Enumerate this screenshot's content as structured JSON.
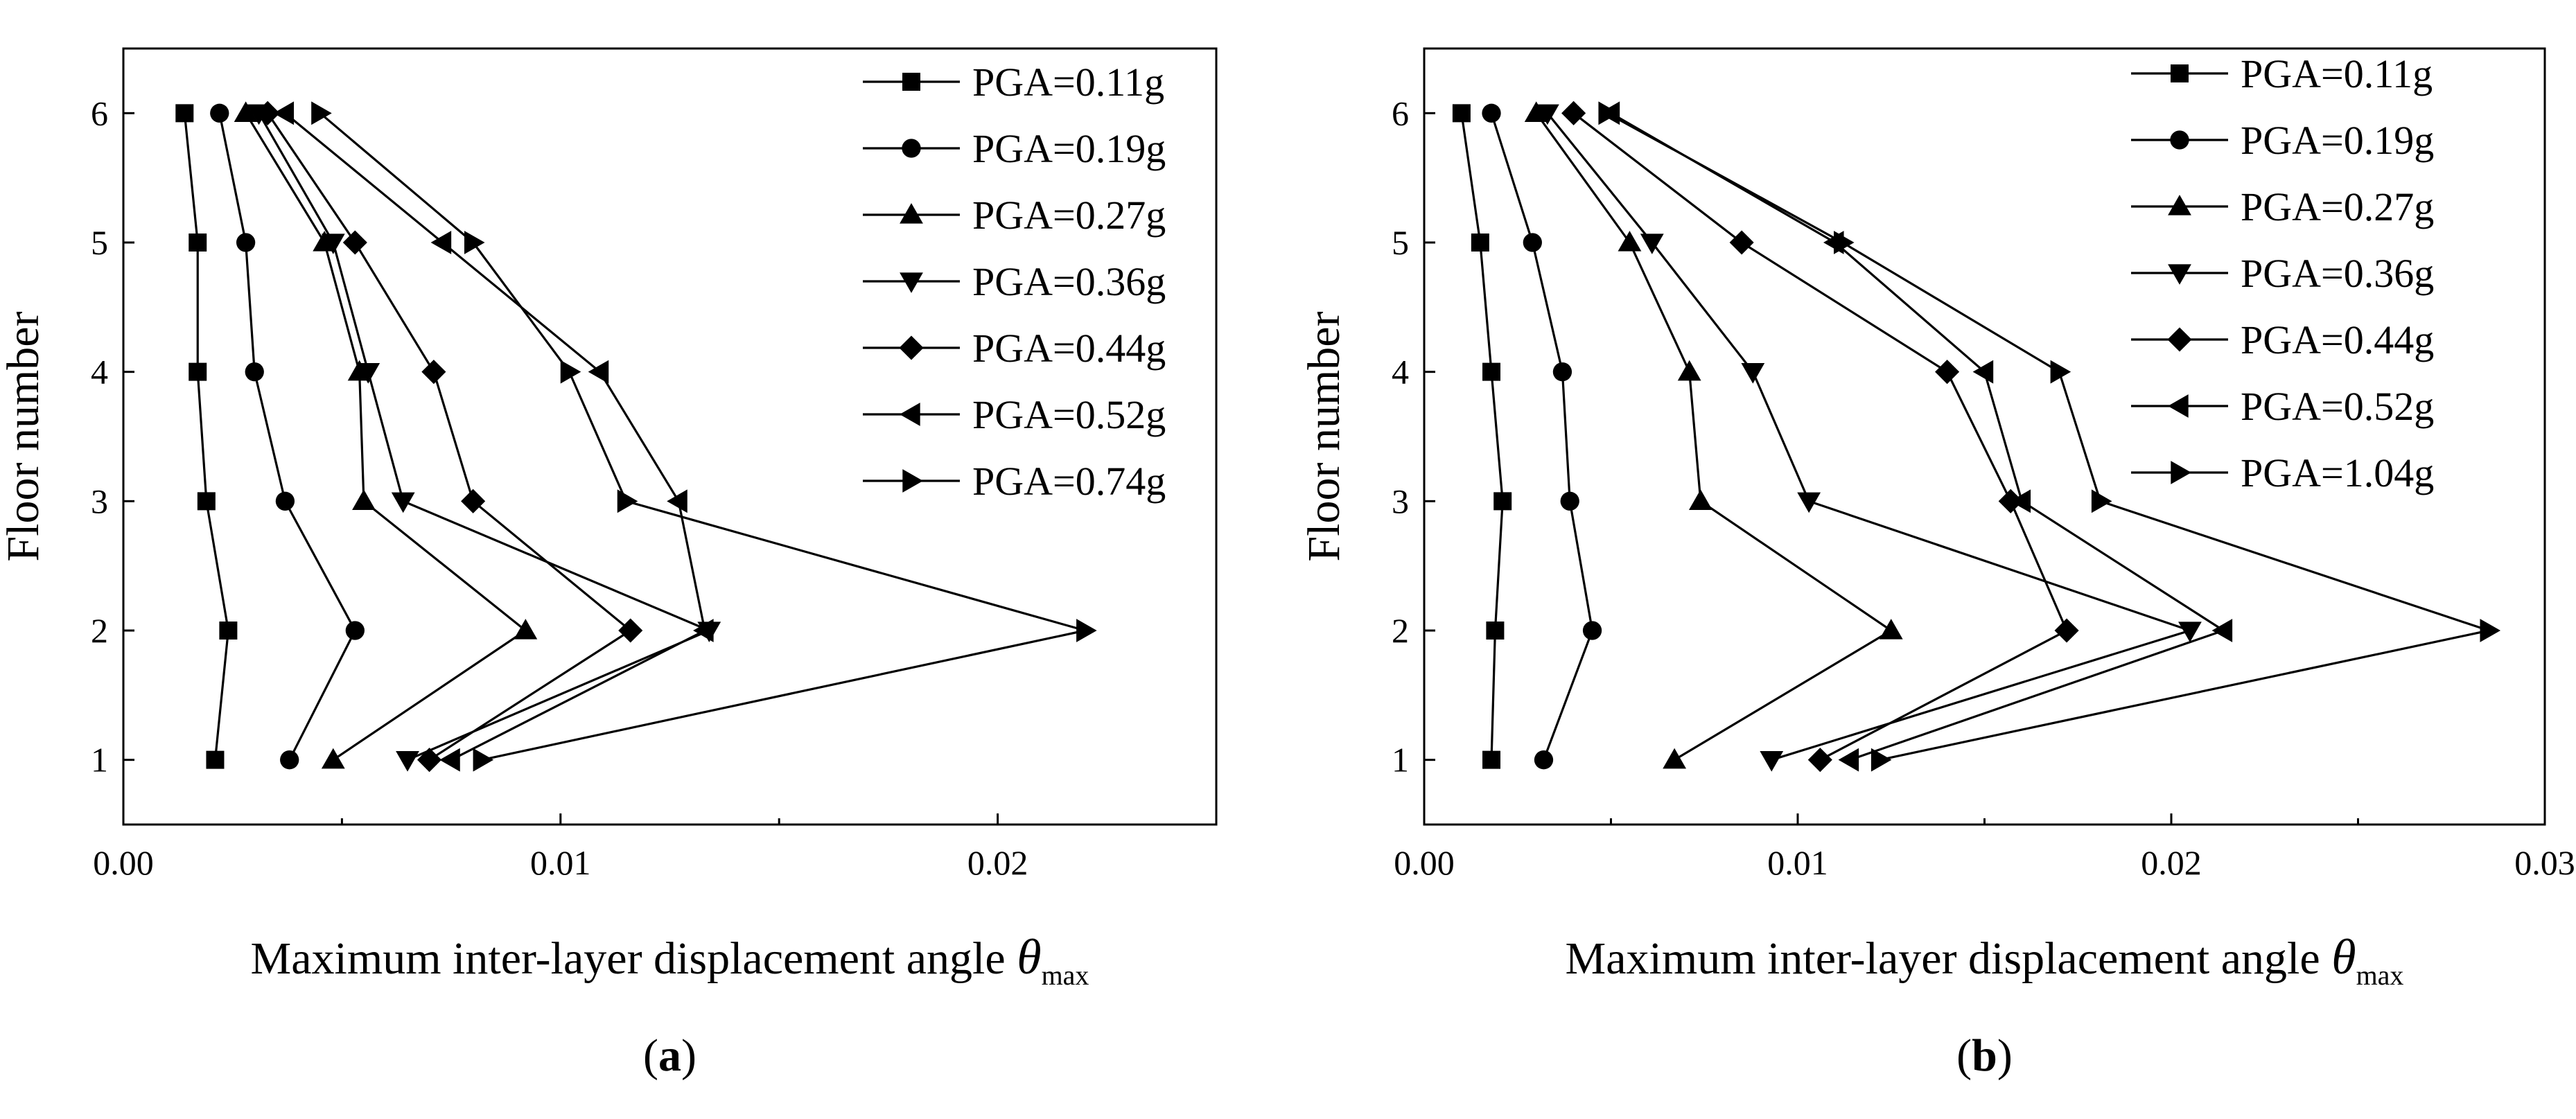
{
  "chart_data": [
    {
      "type": "line",
      "panel_label": "(a)",
      "xlabel": "Maximum inter-layer displacement angle θmax",
      "xlabel_main": "Maximum inter-layer displacement angle ",
      "xlabel_symbol": "θ",
      "xlabel_sub": "max",
      "ylabel": "Floor number",
      "xlim": [
        0,
        0.025
      ],
      "ylim": [
        0.5,
        6.5
      ],
      "xticks": [
        0.0,
        0.01,
        0.02
      ],
      "xtick_labels": [
        "0.00",
        "0.01",
        "0.02"
      ],
      "yticks": [
        1,
        2,
        3,
        4,
        5,
        6
      ],
      "ytick_labels": [
        "1",
        "2",
        "3",
        "4",
        "5",
        "6"
      ],
      "legend_position": "top-right",
      "grid": false,
      "y": [
        1,
        2,
        3,
        4,
        5,
        6
      ],
      "series": [
        {
          "name": "PGA=0.11g",
          "marker": "square",
          "x": [
            0.0021,
            0.0024,
            0.0019,
            0.0017,
            0.0017,
            0.0014
          ]
        },
        {
          "name": "PGA=0.19g",
          "marker": "circle",
          "x": [
            0.0038,
            0.0053,
            0.0037,
            0.003,
            0.0028,
            0.0022
          ]
        },
        {
          "name": "PGA=0.27g",
          "marker": "triangle-up",
          "x": [
            0.0048,
            0.0092,
            0.0055,
            0.0054,
            0.0046,
            0.0028
          ]
        },
        {
          "name": "PGA=0.36g",
          "marker": "triangle-down",
          "x": [
            0.0065,
            0.0134,
            0.0064,
            0.0056,
            0.0048,
            0.0031
          ]
        },
        {
          "name": "PGA=0.44g",
          "marker": "diamond",
          "x": [
            0.007,
            0.0116,
            0.008,
            0.0071,
            0.0053,
            0.0033
          ]
        },
        {
          "name": "PGA=0.52g",
          "marker": "triangle-left",
          "x": [
            0.0075,
            0.0133,
            0.0127,
            0.0109,
            0.0073,
            0.0037
          ]
        },
        {
          "name": "PGA=0.74g",
          "marker": "triangle-right",
          "x": [
            0.0082,
            0.022,
            0.0115,
            0.0102,
            0.008,
            0.0045
          ]
        }
      ]
    },
    {
      "type": "line",
      "panel_label": "(b)",
      "xlabel": "Maximum inter-layer displacement angle θmax",
      "xlabel_main": "Maximum inter-layer displacement angle ",
      "xlabel_symbol": "θ",
      "xlabel_sub": "max",
      "ylabel": "Floor number",
      "xlim": [
        0,
        0.03
      ],
      "ylim": [
        0.5,
        6.5
      ],
      "xticks": [
        0.0,
        0.01,
        0.02,
        0.03
      ],
      "xtick_labels": [
        "0.00",
        "0.01",
        "0.02",
        "0.03"
      ],
      "yticks": [
        1,
        2,
        3,
        4,
        5,
        6
      ],
      "ytick_labels": [
        "1",
        "2",
        "3",
        "4",
        "5",
        "6"
      ],
      "legend_position": "top-right",
      "grid": false,
      "y": [
        1,
        2,
        3,
        4,
        5,
        6
      ],
      "series": [
        {
          "name": "PGA=0.11g",
          "marker": "square",
          "x": [
            0.0018,
            0.0019,
            0.0021,
            0.0018,
            0.0015,
            0.001
          ]
        },
        {
          "name": "PGA=0.19g",
          "marker": "circle",
          "x": [
            0.0032,
            0.0045,
            0.0039,
            0.0037,
            0.0029,
            0.0018
          ]
        },
        {
          "name": "PGA=0.27g",
          "marker": "triangle-up",
          "x": [
            0.0067,
            0.0125,
            0.0074,
            0.0071,
            0.0055,
            0.003
          ]
        },
        {
          "name": "PGA=0.36g",
          "marker": "triangle-down",
          "x": [
            0.0093,
            0.0205,
            0.0103,
            0.0088,
            0.0061,
            0.0033
          ]
        },
        {
          "name": "PGA=0.44g",
          "marker": "diamond",
          "x": [
            0.0106,
            0.0172,
            0.0157,
            0.014,
            0.0085,
            0.004
          ]
        },
        {
          "name": "PGA=0.52g",
          "marker": "triangle-left",
          "x": [
            0.0114,
            0.0214,
            0.016,
            0.015,
            0.011,
            0.005
          ]
        },
        {
          "name": "PGA=1.04g",
          "marker": "triangle-right",
          "x": [
            0.0122,
            0.0285,
            0.0181,
            0.017,
            0.0112,
            0.0049
          ]
        }
      ]
    }
  ]
}
